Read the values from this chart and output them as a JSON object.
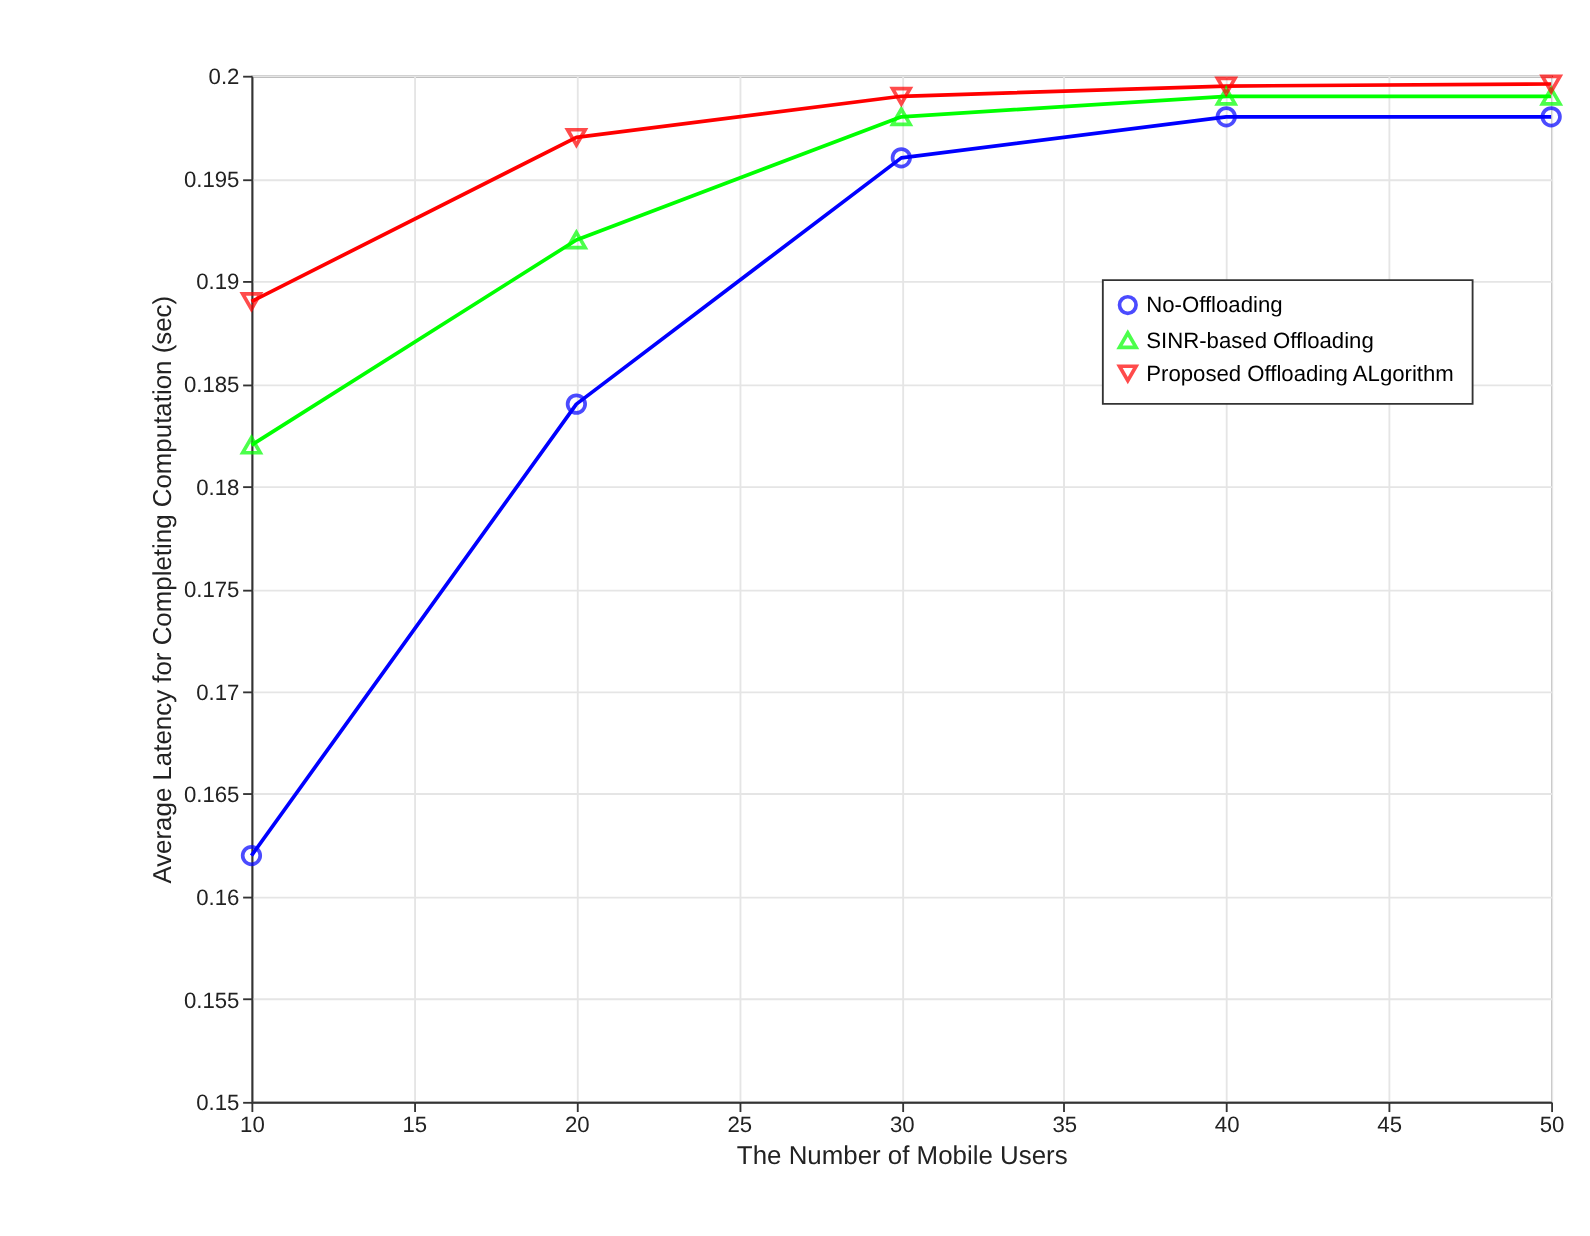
{
  "chart_data": {
    "type": "line",
    "xlabel": "The Number of Mobile Users",
    "ylabel": "Average Latency for Completing Computation (sec)",
    "x": [
      10,
      20,
      30,
      40,
      50
    ],
    "series": [
      {
        "name": "No-Offloading",
        "color": "#0000ff",
        "marker": "circle",
        "values": [
          0.162,
          0.184,
          0.196,
          0.198,
          0.198
        ]
      },
      {
        "name": "SINR-based Offloading",
        "color": "#00ff00",
        "marker": "triangle-up",
        "values": [
          0.182,
          0.192,
          0.198,
          0.199,
          0.199
        ]
      },
      {
        "name": "Proposed Offloading ALgorithm",
        "color": "#ff0000",
        "marker": "triangle-down",
        "values": [
          0.189,
          0.197,
          0.199,
          0.1995,
          0.1996
        ]
      }
    ],
    "xlim": [
      10,
      50
    ],
    "xticks": [
      10,
      15,
      20,
      25,
      30,
      35,
      40,
      45,
      50
    ],
    "ylim": [
      0.15,
      0.2
    ],
    "yticks": [
      0.15,
      0.155,
      0.16,
      0.165,
      0.17,
      0.175,
      0.18,
      0.185,
      0.19,
      0.195,
      0.2
    ],
    "grid": true,
    "legend": "right",
    "line_style": "solid"
  }
}
